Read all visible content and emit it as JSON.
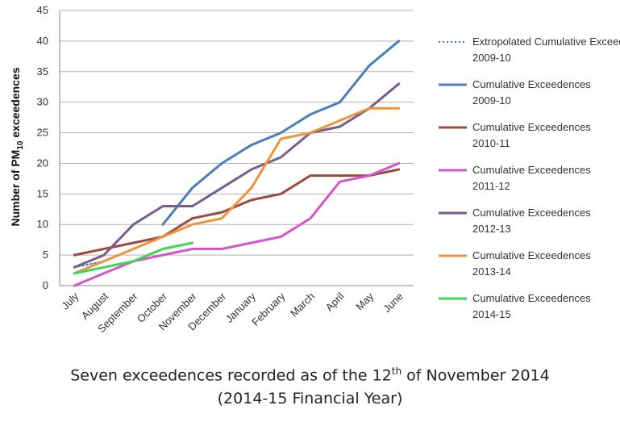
{
  "chart_data": {
    "type": "line",
    "ylabel": {
      "prefix": "Number of PM",
      "subscript": "10",
      "suffix": " exceedences"
    },
    "ylim": [
      0,
      45
    ],
    "yticks": [
      0,
      5,
      10,
      15,
      20,
      25,
      30,
      35,
      40,
      45
    ],
    "grid": "horizontal",
    "legend_position": "right",
    "categories": [
      "July",
      "August",
      "September",
      "October",
      "November",
      "December",
      "January",
      "February",
      "March",
      "April",
      "May",
      "June"
    ],
    "series": [
      {
        "name": "Extropolated Cumulative Exceedences 2009-10",
        "style": "dotted",
        "color": "#4a7ebb",
        "values": [
          3,
          4,
          6,
          8,
          10,
          null,
          null,
          null,
          null,
          null,
          null,
          null
        ]
      },
      {
        "name": "Cumulative Exceedences 2009-10",
        "style": "solid",
        "color": "#4a7ebb",
        "values": [
          null,
          null,
          null,
          10,
          16,
          20,
          23,
          25,
          28,
          30,
          36,
          40
        ]
      },
      {
        "name": "Cumulative Exceedences 2010-11",
        "style": "solid",
        "color": "#9c4b3d",
        "values": [
          5,
          6,
          7,
          8,
          11,
          12,
          14,
          15,
          18,
          18,
          18,
          19
        ]
      },
      {
        "name": "Cumulative Exceedences 2011-12",
        "style": "solid",
        "color": "#d455c9",
        "values": [
          0,
          2,
          4,
          5,
          6,
          6,
          7,
          8,
          11,
          17,
          18,
          20
        ]
      },
      {
        "name": "Cumulative Exceedences 2012-13",
        "style": "solid",
        "color": "#7a5c8f",
        "values": [
          3,
          5,
          10,
          13,
          13,
          16,
          19,
          21,
          25,
          26,
          29,
          33
        ]
      },
      {
        "name": "Cumulative Exceedences 2013-14",
        "style": "solid",
        "color": "#f0943c",
        "values": [
          2,
          4,
          6,
          8,
          10,
          11,
          16,
          24,
          25,
          27,
          29,
          29
        ]
      },
      {
        "name": "Cumulative Exceedences 2014-15",
        "style": "solid",
        "color": "#3fd655",
        "values": [
          2,
          3,
          4,
          6,
          7,
          null,
          null,
          null,
          null,
          null,
          null,
          null
        ]
      }
    ]
  },
  "caption": {
    "line1_pre": "Seven exceedences recorded as of the 12",
    "line1_sup": "th",
    "line1_post": " of November 2014",
    "line2": "(2014-15 Financial Year)"
  }
}
